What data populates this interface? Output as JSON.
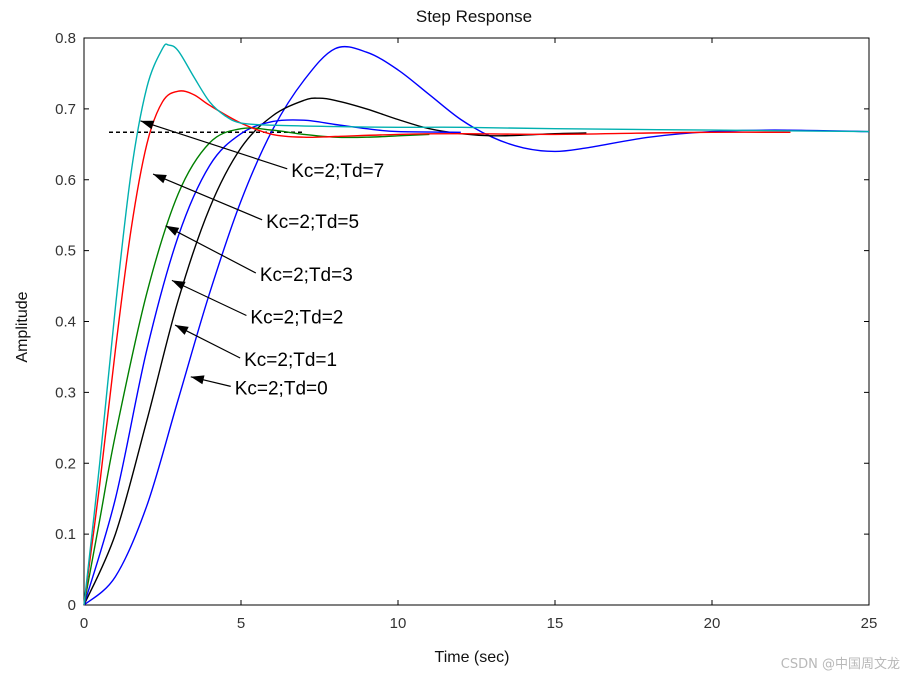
{
  "chart_data": {
    "type": "line",
    "title": "Step Response",
    "xlabel": "Time (sec)",
    "ylabel": "Amplitude",
    "xlim": [
      0,
      25
    ],
    "ylim": [
      0,
      0.8
    ],
    "x_ticks": [
      0,
      5,
      10,
      15,
      20,
      25
    ],
    "y_ticks": [
      0,
      0.1,
      0.2,
      0.3,
      0.4,
      0.5,
      0.6,
      0.7,
      0.8
    ],
    "x_tick_labels": [
      "0",
      "5",
      "10",
      "15",
      "20",
      "25"
    ],
    "y_tick_labels": [
      "0",
      "0.1",
      "0.2",
      "0.3",
      "0.4",
      "0.5",
      "0.6",
      "0.7",
      "0.8"
    ],
    "steady_state": 0.667,
    "series": [
      {
        "name": "Kc=2;Td=0",
        "color": "#0000ff",
        "x": [
          0,
          1,
          2,
          3,
          4,
          5,
          6,
          7,
          8,
          9,
          10,
          11,
          12,
          13,
          14,
          15,
          16,
          18,
          20,
          22,
          25
        ],
        "y": [
          0,
          0.04,
          0.14,
          0.29,
          0.44,
          0.57,
          0.67,
          0.74,
          0.785,
          0.78,
          0.755,
          0.72,
          0.685,
          0.66,
          0.645,
          0.64,
          0.645,
          0.66,
          0.668,
          0.67,
          0.668
        ]
      },
      {
        "name": "Kc=2;Td=1",
        "color": "#000000",
        "x": [
          0,
          1,
          2,
          3,
          4,
          5,
          6,
          7,
          7.5,
          8,
          9,
          10,
          11,
          12,
          13,
          14,
          15,
          16
        ],
        "y": [
          0,
          0.1,
          0.26,
          0.43,
          0.56,
          0.645,
          0.69,
          0.712,
          0.715,
          0.712,
          0.7,
          0.685,
          0.672,
          0.665,
          0.662,
          0.663,
          0.665,
          0.666
        ]
      },
      {
        "name": "Kc=2;Td=2",
        "color": "#0000ff",
        "x": [
          0,
          1,
          2,
          3,
          4,
          5,
          6,
          7,
          8,
          9,
          10,
          12
        ],
        "y": [
          0,
          0.15,
          0.36,
          0.52,
          0.62,
          0.665,
          0.682,
          0.684,
          0.678,
          0.672,
          0.668,
          0.667
        ]
      },
      {
        "name": "Kc=2;Td=3",
        "color": "#008000",
        "x": [
          0,
          0.5,
          1,
          2,
          3,
          4,
          5,
          6,
          7,
          8,
          9,
          10,
          11
        ],
        "y": [
          0,
          0.12,
          0.24,
          0.44,
          0.58,
          0.652,
          0.672,
          0.67,
          0.664,
          0.66,
          0.66,
          0.662,
          0.664
        ]
      },
      {
        "name": "Kc=2;Td=5",
        "color": "#ff0000",
        "x": [
          0,
          0.5,
          1,
          1.5,
          2,
          2.5,
          3,
          3.5,
          4,
          5,
          6,
          7,
          8,
          10,
          12,
          15,
          18,
          20,
          22.5
        ],
        "y": [
          0,
          0.17,
          0.36,
          0.53,
          0.65,
          0.71,
          0.725,
          0.72,
          0.705,
          0.68,
          0.664,
          0.66,
          0.661,
          0.664,
          0.665,
          0.664,
          0.666,
          0.667,
          0.667
        ]
      },
      {
        "name": "Kc=2;Td=7",
        "color": "#00b0b0",
        "x": [
          0,
          0.5,
          1,
          1.5,
          2,
          2.5,
          2.7,
          3,
          3.5,
          4,
          4.5,
          5,
          6,
          8,
          10,
          12,
          15,
          20,
          25
        ],
        "y": [
          0,
          0.2,
          0.42,
          0.61,
          0.73,
          0.785,
          0.79,
          0.782,
          0.745,
          0.71,
          0.69,
          0.68,
          0.677,
          0.675,
          0.674,
          0.674,
          0.672,
          0.67,
          0.668
        ]
      }
    ],
    "annotations": [
      {
        "text": "Kc=2;Td=7",
        "point": [
          1.8,
          0.683
        ],
        "label_at": [
          6.6,
          0.607
        ]
      },
      {
        "text": "Kc=2;Td=5",
        "point": [
          2.2,
          0.608
        ],
        "label_at": [
          5.8,
          0.535
        ]
      },
      {
        "text": "Kc=2;Td=3",
        "point": [
          2.6,
          0.535
        ],
        "label_at": [
          5.6,
          0.46
        ]
      },
      {
        "text": "Kc=2;Td=2",
        "point": [
          2.8,
          0.458
        ],
        "label_at": [
          5.3,
          0.4
        ]
      },
      {
        "text": "Kc=2;Td=1",
        "point": [
          2.9,
          0.395
        ],
        "label_at": [
          5.1,
          0.34
        ]
      },
      {
        "text": "Kc=2;Td=0",
        "point": [
          3.4,
          0.322
        ],
        "label_at": [
          4.8,
          0.3
        ]
      }
    ]
  },
  "watermark": "CSDN @中国周文龙"
}
